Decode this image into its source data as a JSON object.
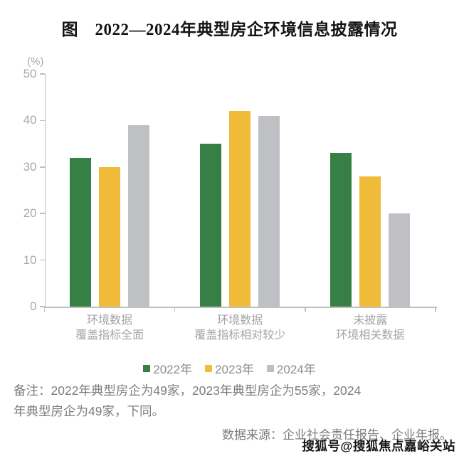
{
  "chart_data": {
    "type": "bar",
    "title": "图　2022—2024年典型房企环境信息披露情况",
    "unit_label": "(%)",
    "categories": [
      [
        "环境数据",
        "覆盖指标全面"
      ],
      [
        "环境数据",
        "覆盖指标相对较少"
      ],
      [
        "未披露",
        "环境相关数据"
      ]
    ],
    "series": [
      {
        "name": "2022年",
        "color": "#368046",
        "values": [
          32,
          35,
          33
        ]
      },
      {
        "name": "2023年",
        "color": "#efbb38",
        "values": [
          30,
          42,
          28
        ]
      },
      {
        "name": "2024年",
        "color": "#bfc0c4",
        "values": [
          39,
          41,
          20
        ]
      }
    ],
    "ylim": [
      0,
      50
    ],
    "yticks": [
      0,
      10,
      20,
      30,
      40,
      50
    ],
    "grid": false,
    "legend_position": "bottom",
    "axis_color": "#bfbfc2"
  },
  "footer": {
    "note_lines": [
      "备注：2022年典型房企为49家，2023年典型房企为55家，2024",
      "年典型房企为49家，下同。"
    ],
    "source": "数据来源：企业社会责任报告、企业年报。",
    "watermark": "搜狐号@搜狐焦点嘉峪关站"
  }
}
